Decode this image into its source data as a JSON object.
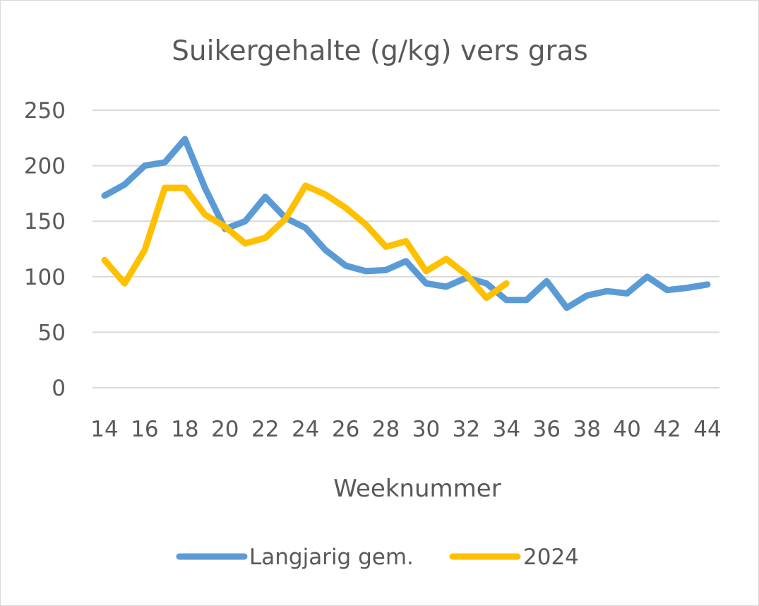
{
  "chart_data": {
    "type": "line",
    "title": "Suikergehalte (g/kg) vers gras",
    "xlabel": "Weeknummer",
    "ylabel": "",
    "xlim": [
      14,
      44
    ],
    "ylim": [
      0,
      250
    ],
    "x_ticks": [
      14,
      16,
      18,
      20,
      22,
      24,
      26,
      28,
      30,
      32,
      34,
      36,
      38,
      40,
      42,
      44
    ],
    "y_ticks": [
      0,
      50,
      100,
      150,
      200,
      250
    ],
    "grid": "horizontal",
    "legend_position": "bottom",
    "series": [
      {
        "name": "Langjarig gem.",
        "color": "#5b9bd5",
        "x": [
          14,
          15,
          16,
          17,
          18,
          19,
          20,
          21,
          22,
          23,
          24,
          25,
          26,
          27,
          28,
          29,
          30,
          31,
          32,
          33,
          34,
          35,
          36,
          37,
          38,
          39,
          40,
          41,
          42,
          43,
          44
        ],
        "values": [
          173,
          183,
          200,
          203,
          224,
          180,
          143,
          150,
          172,
          153,
          144,
          124,
          110,
          105,
          106,
          114,
          94,
          91,
          99,
          94,
          79,
          79,
          96,
          72,
          83,
          87,
          85,
          100,
          88,
          90,
          93
        ]
      },
      {
        "name": "2024",
        "color": "#ffc000",
        "x": [
          14,
          15,
          16,
          17,
          18,
          19,
          20,
          21,
          22,
          23,
          24,
          25,
          26,
          27,
          28,
          29,
          30,
          31,
          32,
          33,
          34
        ],
        "values": [
          115,
          94,
          124,
          180,
          180,
          156,
          145,
          130,
          135,
          152,
          182,
          174,
          162,
          147,
          127,
          132,
          105,
          116,
          102,
          81,
          94
        ]
      }
    ]
  }
}
